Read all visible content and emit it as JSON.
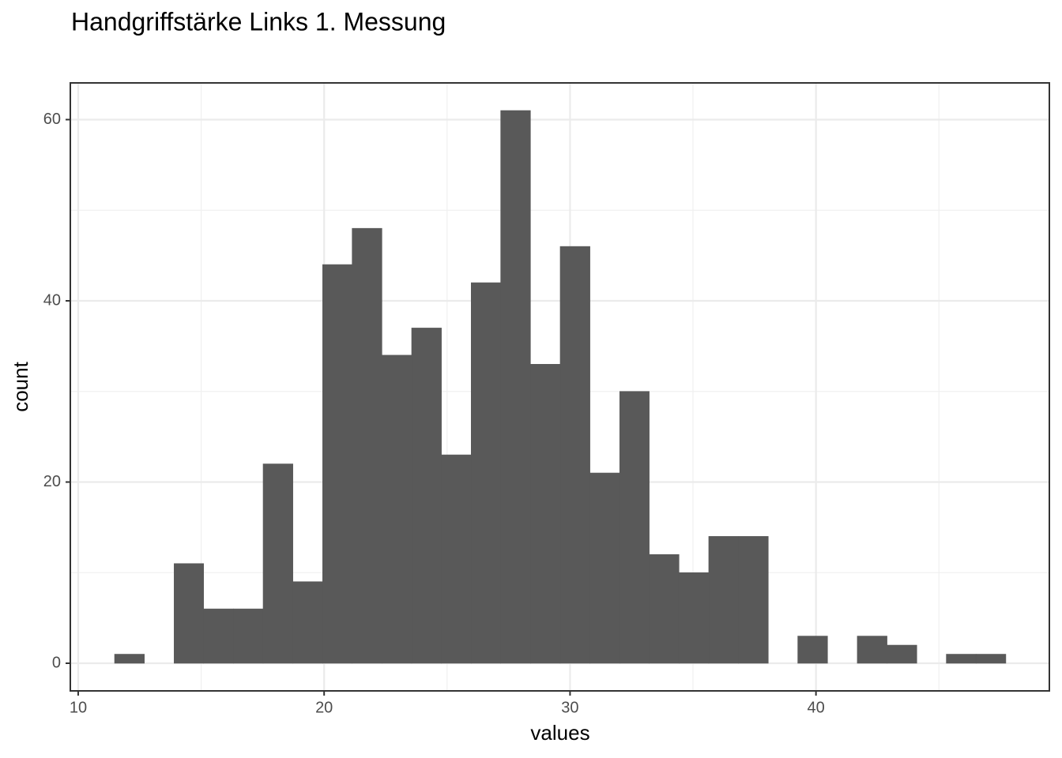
{
  "chart_data": {
    "type": "histogram",
    "title": "Handgriffstärke Links 1. Messung",
    "x_label": "values",
    "y_label": "count",
    "bins": [
      11.48,
      12.69,
      13.9,
      15.1,
      16.31,
      17.52,
      18.73,
      19.94,
      21.14,
      22.35,
      23.56,
      24.77,
      25.98,
      27.18,
      28.39,
      29.6,
      30.81,
      32.02,
      33.22,
      34.43,
      35.64,
      36.85,
      38.06,
      39.26,
      40.47,
      41.68,
      42.89,
      44.1,
      45.3,
      46.51,
      47.72
    ],
    "values": [
      1,
      0,
      11,
      6,
      6,
      22,
      9,
      44,
      48,
      34,
      37,
      23,
      42,
      61,
      33,
      46,
      21,
      30,
      12,
      10,
      14,
      14,
      0,
      3,
      0,
      3,
      2,
      0,
      1,
      1
    ],
    "color": "#595959",
    "xlim": [
      9.68,
      49.49
    ],
    "ylim": [
      -3.05,
      64.05
    ],
    "xticks": [
      10,
      20,
      30,
      40
    ],
    "yticks": [
      0,
      20,
      40,
      60
    ],
    "grid": true
  }
}
